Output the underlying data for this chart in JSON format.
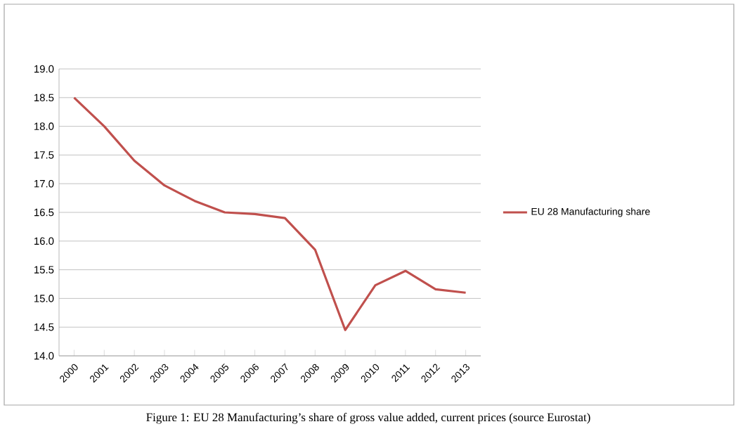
{
  "chart_data": {
    "type": "line",
    "categories": [
      "2000",
      "2001",
      "2002",
      "2003",
      "2004",
      "2005",
      "2006",
      "2007",
      "2008",
      "2009",
      "2010",
      "2011",
      "2012",
      "2013"
    ],
    "series": [
      {
        "name": "EU 28 Manufacturing share",
        "color": "#c0504d",
        "values": [
          18.5,
          18.0,
          17.4,
          16.97,
          16.7,
          16.5,
          16.47,
          16.4,
          15.85,
          14.45,
          15.23,
          15.48,
          15.16,
          15.1
        ]
      }
    ],
    "ylim": [
      14.0,
      19.0
    ],
    "yticks": [
      {
        "value": 14.0,
        "label": "14.0"
      },
      {
        "value": 14.5,
        "label": "14.5"
      },
      {
        "value": 15.0,
        "label": "15.0"
      },
      {
        "value": 15.5,
        "label": "15.5"
      },
      {
        "value": 16.0,
        "label": "16.0"
      },
      {
        "value": 16.5,
        "label": "16.5"
      },
      {
        "value": 17.0,
        "label": "17.0"
      },
      {
        "value": 17.5,
        "label": "17.5"
      },
      {
        "value": 18.0,
        "label": "18.0"
      },
      {
        "value": 18.5,
        "label": "18.5"
      },
      {
        "value": 19.0,
        "label": "19.0"
      }
    ],
    "grid": "y",
    "legend": "right",
    "marker": "none",
    "line_style": "solid",
    "annotations": [
      "Figure 1: EU 28 Manufacturing’s share of gross value added, current prices (source Eurostat)"
    ]
  }
}
